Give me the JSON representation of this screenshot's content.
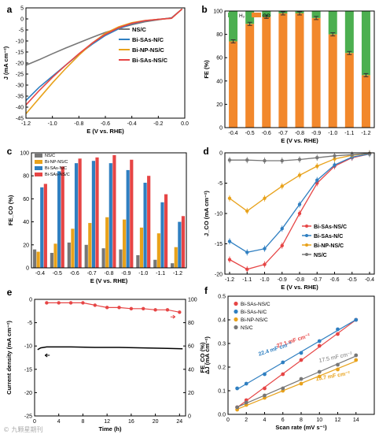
{
  "watermark": "© 九颗星期刊",
  "colors": {
    "ns": "#777777",
    "sas": "#2f7fc1",
    "np": "#e8a21b",
    "sasns": "#e64545",
    "h2": "#4caf50",
    "co": "#f2882c",
    "co_light": "#fbc79a",
    "h2_light": "#bde3bd"
  },
  "chart_data": [
    {
      "panel": "a",
      "type": "line",
      "xlabel": "E (V vs. RHE)",
      "ylabel": "J (mA cm⁻²)",
      "xlim": [
        -1.2,
        0.0
      ],
      "ylim": [
        -45,
        5
      ],
      "xticks": [
        "-1.2",
        "-1.0",
        "-0.8",
        "-0.6",
        "-0.4",
        "-0.2",
        "0.0"
      ],
      "yticks": [
        "5",
        "0",
        "-5",
        "-10",
        "-15",
        "-20",
        "-25",
        "-30",
        "-35",
        "-40",
        "-45"
      ],
      "legend": "top-right",
      "series": [
        {
          "name": "NS/C",
          "x": [
            -1.2,
            -1.1,
            -1.0,
            -0.9,
            -0.8,
            -0.7,
            -0.6,
            -0.5,
            -0.4,
            -0.3,
            -0.2,
            -0.1,
            -0.02
          ],
          "y": [
            -21,
            -18.5,
            -15.8,
            -13.2,
            -10.8,
            -8.4,
            -6.1,
            -4.3,
            -2.6,
            -1.3,
            -0.4,
            0.5,
            4.5
          ]
        },
        {
          "name": "Bi-SAs-N/C",
          "x": [
            -1.2,
            -1.1,
            -1.0,
            -0.9,
            -0.8,
            -0.7,
            -0.6,
            -0.5,
            -0.4,
            -0.3,
            -0.2,
            -0.1,
            -0.02
          ],
          "y": [
            -37,
            -31,
            -26,
            -21,
            -16,
            -11.5,
            -7.5,
            -4.5,
            -2.2,
            -0.9,
            -0.2,
            0.4,
            4.5
          ]
        },
        {
          "name": "Bi-NP-NS/C",
          "x": [
            -1.2,
            -1.1,
            -1.0,
            -0.9,
            -0.8,
            -0.7,
            -0.6,
            -0.5,
            -0.4,
            -0.3,
            -0.2,
            -0.1,
            -0.02
          ],
          "y": [
            -43,
            -36,
            -29,
            -22.5,
            -16.5,
            -11,
            -6.5,
            -3.6,
            -1.7,
            -0.7,
            -0.2,
            0.3,
            4.5
          ]
        },
        {
          "name": "Bi-SAs-NS/C",
          "x": [
            -1.2,
            -1.1,
            -1.0,
            -0.9,
            -0.8,
            -0.7,
            -0.6,
            -0.5,
            -0.4,
            -0.3,
            -0.2,
            -0.1,
            -0.02
          ],
          "y": [
            -39,
            -32.5,
            -26.5,
            -21,
            -15.8,
            -11,
            -7,
            -4,
            -2,
            -0.8,
            -0.2,
            0.3,
            4.5
          ]
        }
      ]
    },
    {
      "panel": "b",
      "type": "bar",
      "xlabel": "E (V vs. RHE)",
      "ylabel": "FE (%)",
      "ylim": [
        0,
        100
      ],
      "yticks": [
        "0",
        "20",
        "40",
        "60",
        "80",
        "100"
      ],
      "categories": [
        "-0.4",
        "-0.5",
        "-0.6",
        "-0.7",
        "-0.8",
        "-0.9",
        "-1.0",
        "-1.1",
        "-1.2"
      ],
      "legend": "top-left",
      "series": [
        {
          "name": "CO",
          "values": [
            74,
            89,
            95,
            98,
            98,
            94,
            80,
            64,
            45
          ]
        },
        {
          "name": "H₂",
          "values": [
            25,
            10,
            4,
            1,
            1,
            5,
            19,
            35,
            54
          ]
        }
      ]
    },
    {
      "panel": "c",
      "type": "bar",
      "xlabel": "E (V vs. RHE)",
      "ylabel": "FE_CO (%)",
      "ylim": [
        0,
        100
      ],
      "yticks": [
        "0",
        "20",
        "40",
        "60",
        "80",
        "100"
      ],
      "categories": [
        "-0.4",
        "-0.5",
        "-0.6",
        "-0.7",
        "-0.8",
        "-0.9",
        "-1.0",
        "-1.1",
        "-1.2"
      ],
      "legend": "top-left",
      "series": [
        {
          "name": "NS/C",
          "values": [
            16,
            13,
            22,
            20,
            17,
            16,
            11,
            7,
            4
          ]
        },
        {
          "name": "Bi-NP-NS/C",
          "values": [
            14,
            21,
            34,
            39,
            44,
            42,
            35,
            30,
            18
          ]
        },
        {
          "name": "Bi-SAs-N/C",
          "values": [
            70,
            84,
            91,
            93,
            91,
            85,
            74,
            57,
            40
          ]
        },
        {
          "name": "Bi-SAs-NS/C",
          "values": [
            73,
            88,
            95,
            96,
            98,
            94,
            80,
            64,
            45
          ]
        }
      ]
    },
    {
      "panel": "d",
      "type": "line",
      "xlabel": "E (V vs. RHE)",
      "ylabel": "J_CO (mA cm⁻²)",
      "xlim": [
        -1.2,
        -0.4
      ],
      "ylim": [
        -20,
        0
      ],
      "xticks": [
        "-1.2",
        "-1.1",
        "-1.0",
        "-0.9",
        "-0.8",
        "-0.7",
        "-0.6",
        "-0.5",
        "-0.4"
      ],
      "yticks": [
        "0",
        "-5",
        "-10",
        "-15",
        "-20"
      ],
      "legend": "bottom-right",
      "x": [
        -1.2,
        -1.1,
        -1.0,
        -0.9,
        -0.8,
        -0.7,
        -0.6,
        -0.5,
        -0.4
      ],
      "series": [
        {
          "name": "Bi-SAs-NS/C",
          "values": [
            -17.6,
            -19.2,
            -18.4,
            -15.3,
            -10,
            -5,
            -2.2,
            -0.8,
            -0.2
          ]
        },
        {
          "name": "Bi-SAs-N/C",
          "values": [
            -14.6,
            -16.4,
            -15.8,
            -12.5,
            -8.5,
            -4.5,
            -2,
            -0.7,
            -0.2
          ]
        },
        {
          "name": "Bi-NP-NS/C",
          "values": [
            -7.5,
            -9.6,
            -7.5,
            -5.5,
            -3.7,
            -2.2,
            -1,
            -0.4,
            -0.1
          ]
        },
        {
          "name": "NS/C",
          "values": [
            -1.2,
            -1.2,
            -1.3,
            -1.3,
            -1.1,
            -0.8,
            -0.5,
            -0.3,
            -0.1
          ]
        }
      ]
    },
    {
      "panel": "e",
      "type": "line",
      "xlabel": "Time (h)",
      "ylabel": "Current density (mA cm⁻²)",
      "ylabel2": "FE_CO (%)",
      "xlim": [
        0,
        25
      ],
      "ylim": [
        -25,
        0
      ],
      "ylim2": [
        0,
        100
      ],
      "xticks": [
        "0",
        "4",
        "8",
        "12",
        "16",
        "20",
        "24"
      ],
      "yticks": [
        "0",
        "-5",
        "-10",
        "-15",
        "-20",
        "-25"
      ],
      "yticks2": [
        "0",
        "20",
        "40",
        "60",
        "80",
        "100"
      ],
      "series": [
        {
          "name": "current",
          "x": [
            0.5,
            1,
            2,
            4,
            6,
            10,
            14,
            18,
            22,
            24.5
          ],
          "y": [
            -10.8,
            -10.4,
            -10.2,
            -10.2,
            -10.2,
            -10.3,
            -10.3,
            -10.4,
            -10.5,
            -10.6
          ]
        },
        {
          "name": "FE_CO",
          "x": [
            2,
            4,
            6,
            8,
            10,
            12,
            14,
            16,
            18,
            20,
            22,
            24
          ],
          "y": [
            97,
            97,
            97,
            97,
            95,
            93,
            93,
            92,
            92,
            91,
            91,
            89
          ]
        }
      ]
    },
    {
      "panel": "f",
      "type": "scatter",
      "xlabel": "Scan rate (mV s⁻¹)",
      "ylabel": "ΔJ (mA cm⁻²)",
      "xlim": [
        0,
        16
      ],
      "ylim": [
        0.0,
        0.5
      ],
      "xticks": [
        "0",
        "2",
        "4",
        "6",
        "8",
        "10",
        "12",
        "14"
      ],
      "yticks": [
        "0.0",
        "0.1",
        "0.2",
        "0.3",
        "0.4",
        "0.5"
      ],
      "legend": "top-left",
      "x": [
        1,
        2,
        4,
        6,
        8,
        10,
        12,
        14
      ],
      "series": [
        {
          "name": "Bi-SAs-NS/C",
          "values": [
            0.03,
            0.06,
            0.11,
            0.17,
            0.23,
            0.29,
            0.34,
            0.4
          ],
          "slope_label": "27.1 mF cm⁻²"
        },
        {
          "name": "Bi-SAs-N/C",
          "values": [
            0.11,
            0.13,
            0.17,
            0.22,
            0.26,
            0.31,
            0.36,
            0.4
          ],
          "slope_label": "22.4 mF cm⁻²"
        },
        {
          "name": "Bi-NP-NS/C",
          "values": [
            0.02,
            0.04,
            0.07,
            0.1,
            0.13,
            0.16,
            0.19,
            0.23
          ],
          "slope_label": "15.7 mF cm⁻²"
        },
        {
          "name": "NS/C",
          "values": [
            0.03,
            0.05,
            0.08,
            0.11,
            0.15,
            0.18,
            0.21,
            0.25
          ],
          "slope_label": "17.5 mF cm⁻²"
        }
      ]
    }
  ]
}
